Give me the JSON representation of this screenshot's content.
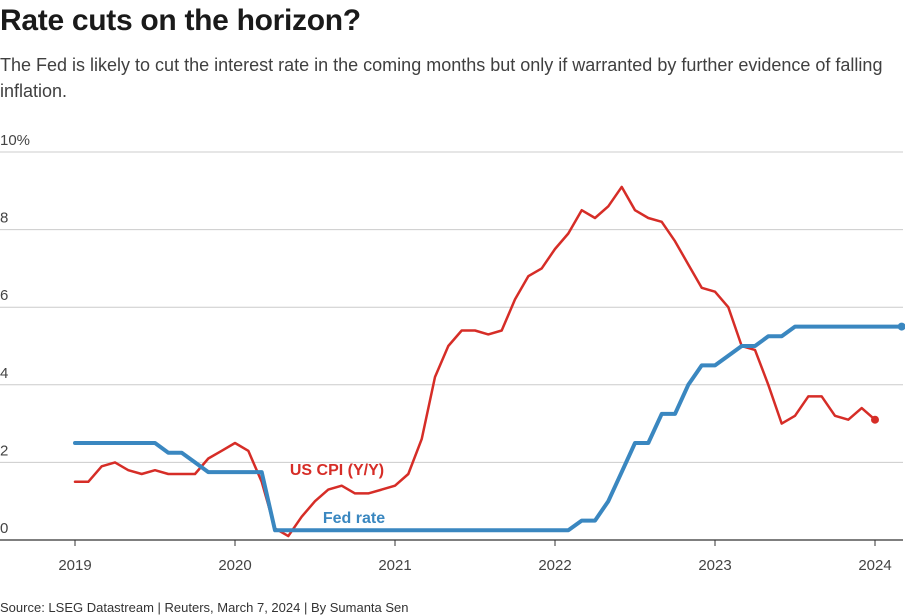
{
  "title": "Rate cuts on the horizon?",
  "subtitle": "The Fed is likely to cut the interest rate in the coming months but only if warranted by further evidence of falling inflation.",
  "source": "Source: LSEG Datastream | Reuters, March 7, 2024 | By Sumanta Sen",
  "chart_data": {
    "type": "line",
    "ylim": [
      0,
      10
    ],
    "xlim": [
      "2019-01",
      "2024-03"
    ],
    "y_ticks": [
      0,
      2,
      4,
      6,
      8,
      10
    ],
    "y_tick_labels": [
      "0",
      "2",
      "4",
      "6",
      "8",
      "10%"
    ],
    "x_ticks": [
      "2019-01",
      "2020-01",
      "2021-01",
      "2022-01",
      "2023-01",
      "2024-01"
    ],
    "x_tick_labels": [
      "2019",
      "2020",
      "2021",
      "2022",
      "2023",
      "2024"
    ],
    "grid": true,
    "series": [
      {
        "name": "US CPI (Y/Y)",
        "color": "#d62d27",
        "end_marker": true,
        "x": [
          "2019-01",
          "2019-02",
          "2019-03",
          "2019-04",
          "2019-05",
          "2019-06",
          "2019-07",
          "2019-08",
          "2019-09",
          "2019-10",
          "2019-11",
          "2019-12",
          "2020-01",
          "2020-02",
          "2020-03",
          "2020-04",
          "2020-05",
          "2020-06",
          "2020-07",
          "2020-08",
          "2020-09",
          "2020-10",
          "2020-11",
          "2020-12",
          "2021-01",
          "2021-02",
          "2021-03",
          "2021-04",
          "2021-05",
          "2021-06",
          "2021-07",
          "2021-08",
          "2021-09",
          "2021-10",
          "2021-11",
          "2021-12",
          "2022-01",
          "2022-02",
          "2022-03",
          "2022-04",
          "2022-05",
          "2022-06",
          "2022-07",
          "2022-08",
          "2022-09",
          "2022-10",
          "2022-11",
          "2022-12",
          "2023-01",
          "2023-02",
          "2023-03",
          "2023-04",
          "2023-05",
          "2023-06",
          "2023-07",
          "2023-08",
          "2023-09",
          "2023-10",
          "2023-11",
          "2023-12",
          "2024-01"
        ],
        "values": [
          1.5,
          1.5,
          1.9,
          2.0,
          1.8,
          1.7,
          1.8,
          1.7,
          1.7,
          1.7,
          2.1,
          2.3,
          2.5,
          2.3,
          1.5,
          0.3,
          0.1,
          0.6,
          1.0,
          1.3,
          1.4,
          1.2,
          1.2,
          1.3,
          1.4,
          1.7,
          2.6,
          4.2,
          5.0,
          5.4,
          5.4,
          5.3,
          5.4,
          6.2,
          6.8,
          7.0,
          7.5,
          7.9,
          8.5,
          8.3,
          8.6,
          9.1,
          8.5,
          8.3,
          8.2,
          7.7,
          7.1,
          6.5,
          6.4,
          6.0,
          5.0,
          4.9,
          4.0,
          3.0,
          3.2,
          3.7,
          3.7,
          3.2,
          3.1,
          3.4,
          3.1
        ]
      },
      {
        "name": "Fed rate",
        "color": "#3a87c0",
        "end_marker": true,
        "x": [
          "2019-01",
          "2019-02",
          "2019-03",
          "2019-04",
          "2019-05",
          "2019-06",
          "2019-07",
          "2019-08",
          "2019-09",
          "2019-10",
          "2019-11",
          "2019-12",
          "2020-01",
          "2020-02",
          "2020-03",
          "2020-04",
          "2020-05",
          "2020-06",
          "2020-07",
          "2020-08",
          "2020-09",
          "2020-10",
          "2020-11",
          "2020-12",
          "2021-01",
          "2021-02",
          "2021-03",
          "2021-04",
          "2021-05",
          "2021-06",
          "2021-07",
          "2021-08",
          "2021-09",
          "2021-10",
          "2021-11",
          "2021-12",
          "2022-01",
          "2022-02",
          "2022-03",
          "2022-04",
          "2022-05",
          "2022-06",
          "2022-07",
          "2022-08",
          "2022-09",
          "2022-10",
          "2022-11",
          "2022-12",
          "2023-01",
          "2023-02",
          "2023-03",
          "2023-04",
          "2023-05",
          "2023-06",
          "2023-07",
          "2023-08",
          "2023-09",
          "2023-10",
          "2023-11",
          "2023-12",
          "2024-01",
          "2024-02",
          "2024-03"
        ],
        "values": [
          2.5,
          2.5,
          2.5,
          2.5,
          2.5,
          2.5,
          2.5,
          2.25,
          2.25,
          2.0,
          1.75,
          1.75,
          1.75,
          1.75,
          1.75,
          0.25,
          0.25,
          0.25,
          0.25,
          0.25,
          0.25,
          0.25,
          0.25,
          0.25,
          0.25,
          0.25,
          0.25,
          0.25,
          0.25,
          0.25,
          0.25,
          0.25,
          0.25,
          0.25,
          0.25,
          0.25,
          0.25,
          0.25,
          0.5,
          0.5,
          1.0,
          1.75,
          2.5,
          2.5,
          3.25,
          3.25,
          4.0,
          4.5,
          4.5,
          4.75,
          5.0,
          5.0,
          5.25,
          5.25,
          5.5,
          5.5,
          5.5,
          5.5,
          5.5,
          5.5,
          5.5,
          5.5,
          5.5
        ]
      }
    ]
  }
}
